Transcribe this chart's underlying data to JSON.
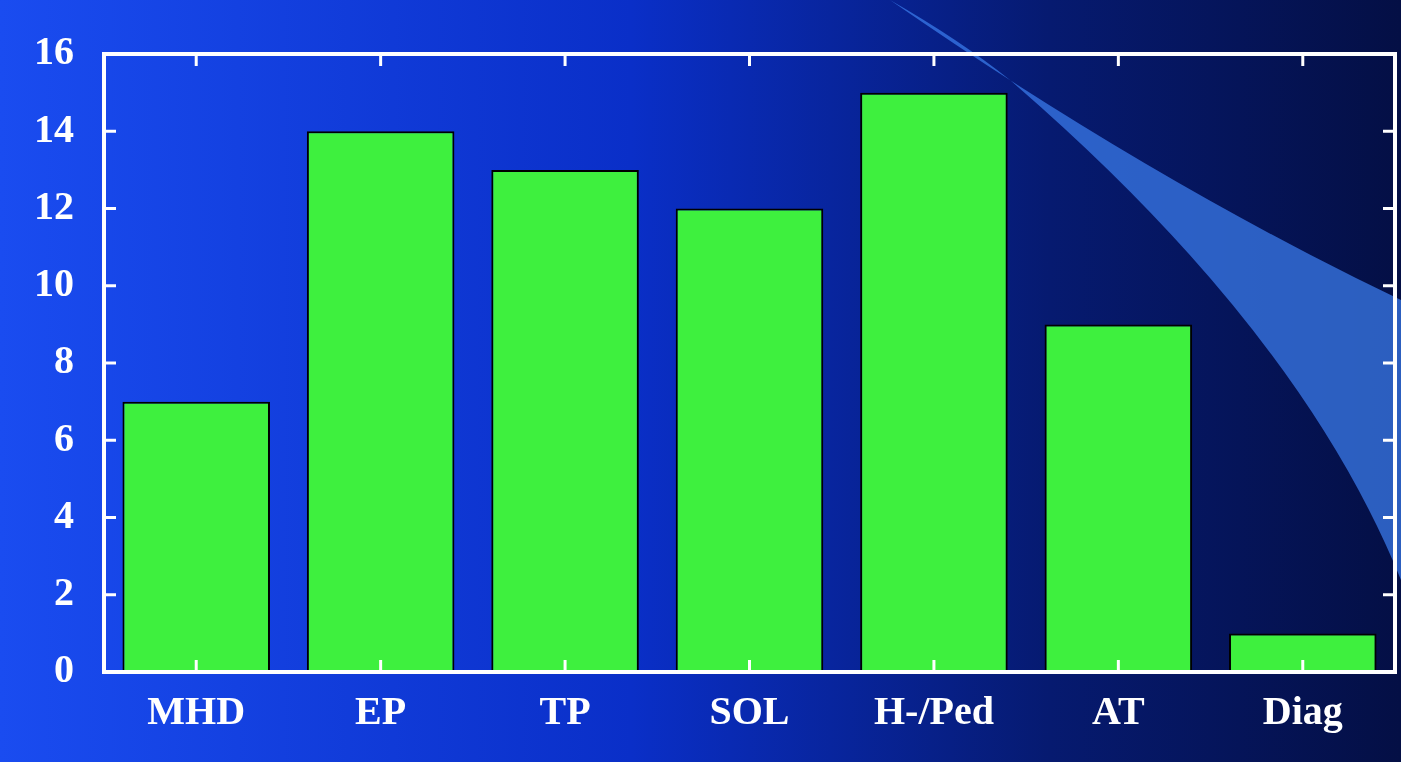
{
  "chart_data": {
    "type": "bar",
    "categories": [
      "MHD",
      "EP",
      "TP",
      "SOL",
      "H-/Ped",
      "AT",
      "Diag"
    ],
    "values": [
      7,
      14,
      13,
      12,
      15,
      9,
      1
    ],
    "color": "#3ef03e",
    "ylim": [
      0,
      16
    ],
    "yticks": [
      0,
      2,
      4,
      6,
      8,
      10,
      12,
      14,
      16
    ]
  }
}
